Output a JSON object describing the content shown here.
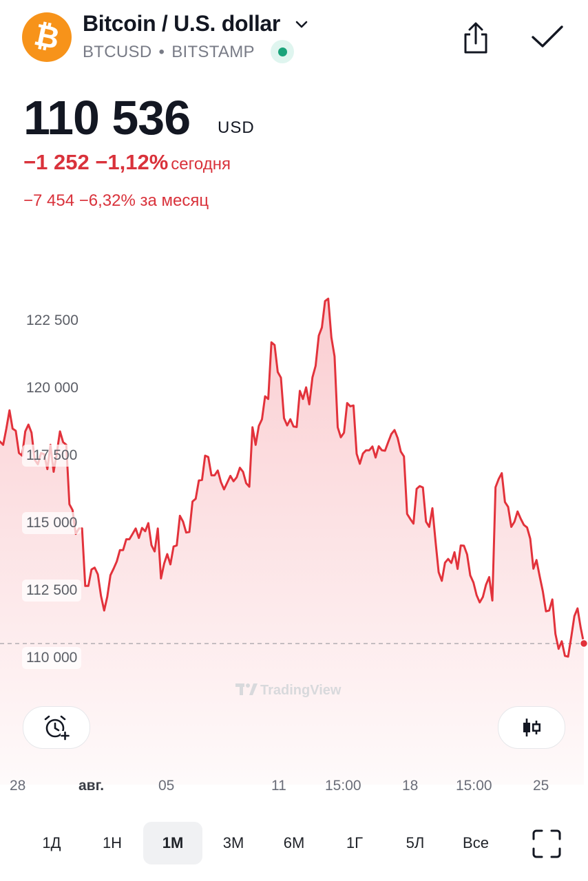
{
  "header": {
    "title": "Bitcoin / U.S. dollar",
    "symbol": "BTCUSD",
    "separator": "•",
    "exchange": "BITSTAMP",
    "logo_icon": "bitcoin-logo-icon",
    "logo_glyph": "₿",
    "logo_color": "#f7931a",
    "live_status_color": "#1aa37a"
  },
  "quote": {
    "price": "110 536",
    "currency": "USD",
    "change_today": "−1 252 −1,12%",
    "change_today_suffix": "сегодня",
    "change_month": "−7 454 −6,32% за месяц",
    "negative_color": "#d9323b"
  },
  "chart_data": {
    "type": "area",
    "yticks": [
      "122 500",
      "120 000",
      "117 500",
      "115 000",
      "112 500",
      "110 000"
    ],
    "ytick_values": [
      122500,
      120000,
      117500,
      115000,
      112500,
      110000
    ],
    "ylim": [
      108700,
      124300
    ],
    "xticks": [
      "28",
      "авг.",
      "05",
      "11",
      "15:00",
      "18",
      "15:00",
      "25"
    ],
    "last_price": 110536,
    "watermark": "TradingView",
    "line_color": "#e2323b",
    "values": [
      118020,
      117900,
      118500,
      119180,
      118500,
      118420,
      117600,
      117500,
      118400,
      118650,
      118350,
      117350,
      117180,
      117600,
      117550,
      117000,
      117900,
      116900,
      117600,
      118400,
      118000,
      117900,
      115700,
      115480,
      114600,
      114800,
      114800,
      112670,
      112670,
      113280,
      113350,
      113100,
      112300,
      111760,
      112270,
      113070,
      113310,
      113580,
      114000,
      114000,
      114400,
      114400,
      114600,
      114800,
      114450,
      114820,
      114700,
      115000,
      114180,
      113950,
      114800,
      112950,
      113500,
      113850,
      113470,
      114130,
      114170,
      115270,
      115050,
      114650,
      114670,
      115800,
      115900,
      116580,
      116600,
      117500,
      117450,
      116770,
      116770,
      116950,
      116520,
      116250,
      116500,
      116750,
      116550,
      116700,
      117050,
      116900,
      116480,
      116350,
      118550,
      117900,
      118600,
      118850,
      119700,
      119600,
      121700,
      121600,
      120600,
      120390,
      118890,
      118620,
      118850,
      118580,
      118560,
      119900,
      119600,
      120030,
      119400,
      120400,
      120830,
      121950,
      122250,
      123230,
      123320,
      121880,
      121180,
      118550,
      118180,
      118350,
      119450,
      119330,
      119360,
      117570,
      117200,
      117580,
      117700,
      117700,
      117840,
      117430,
      117850,
      117700,
      117680,
      118000,
      118300,
      118450,
      118150,
      117650,
      117470,
      115340,
      115150,
      114980,
      116270,
      116370,
      116320,
      115050,
      114860,
      115550,
      114310,
      113180,
      112860,
      113530,
      113670,
      113520,
      113920,
      113300,
      114170,
      114160,
      113840,
      113060,
      112800,
      112330,
      112060,
      112260,
      112720,
      113000,
      112130,
      116330,
      116630,
      116850,
      115780,
      115600,
      114860,
      115050,
      115430,
      115160,
      114930,
      114840,
      114420,
      113310,
      113630,
      113030,
      112470,
      111730,
      111760,
      112170,
      110890,
      110340,
      110620,
      110080,
      110050,
      110780,
      111550,
      111840,
      111120,
      110540
    ]
  },
  "actions": {
    "alert_icon": "alarm-clock-plus-icon",
    "chart_type_icon": "candlestick-icon",
    "share_icon": "share-icon",
    "confirm_icon": "check-icon",
    "dropdown_icon": "chevron-down-icon",
    "fullscreen_icon": "fullscreen-icon"
  },
  "timeframes": [
    {
      "label": "1Д",
      "selected": false
    },
    {
      "label": "1Н",
      "selected": false
    },
    {
      "label": "1М",
      "selected": true
    },
    {
      "label": "3М",
      "selected": false
    },
    {
      "label": "6М",
      "selected": false
    },
    {
      "label": "1Г",
      "selected": false
    },
    {
      "label": "5Л",
      "selected": false
    },
    {
      "label": "Все",
      "selected": false
    }
  ]
}
